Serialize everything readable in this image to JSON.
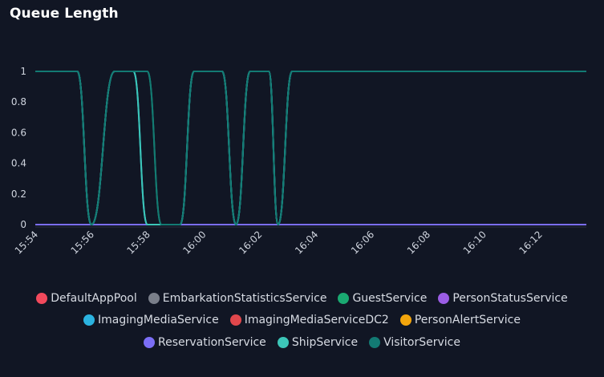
{
  "panel": {
    "title": "Queue Length"
  },
  "chart_data": {
    "type": "line",
    "title": "Queue Length",
    "xlabel": "",
    "ylabel": "",
    "ylim": [
      0,
      1.05
    ],
    "yticks": [
      0,
      0.2,
      0.4,
      0.6,
      0.8,
      1
    ],
    "xlim": [
      "15:54",
      "16:13:40"
    ],
    "xticks": [
      "15:54",
      "15:56",
      "15:58",
      "16:00",
      "16:02",
      "16:04",
      "16:06",
      "16:08",
      "16:10",
      "16:12"
    ],
    "grid": false,
    "legend_position": "bottom",
    "series": [
      {
        "name": "DefaultAppPool",
        "color": "#f2495c",
        "x": [
          "15:54",
          "16:13:40"
        ],
        "y": [
          0,
          0
        ]
      },
      {
        "name": "EmbarkationStatisticsService",
        "color": "#7a7f8a",
        "x": [
          "15:54",
          "16:13:40"
        ],
        "y": [
          0,
          0
        ]
      },
      {
        "name": "GuestService",
        "color": "#1aa971",
        "x": [
          "15:54",
          "15:55:30",
          "15:56",
          "15:56:50",
          "15:58",
          "15:58:30",
          "15:59:10",
          "15:59:40",
          "16:00:40",
          "16:01:10",
          "16:01:40",
          "16:02:20",
          "16:02:40",
          "16:03:10",
          "16:13:40"
        ],
        "y": [
          1,
          1,
          0,
          1,
          1,
          0,
          0,
          1,
          1,
          0,
          1,
          1,
          0,
          1,
          1
        ]
      },
      {
        "name": "PersonStatusService",
        "color": "#9b5de5",
        "x": [
          "15:54",
          "16:13:40"
        ],
        "y": [
          0,
          0
        ]
      },
      {
        "name": "ImagingMediaService",
        "color": "#2bb3e0",
        "x": [
          "15:54",
          "15:55:30",
          "15:56",
          "15:56:50",
          "15:57:30",
          "15:58",
          "15:59:10",
          "15:59:40",
          "16:00:40",
          "16:01:10",
          "16:01:40",
          "16:02:20",
          "16:02:40",
          "16:03:10",
          "16:13:40"
        ],
        "y": [
          1,
          1,
          0,
          1,
          1,
          0,
          0,
          1,
          1,
          0,
          1,
          1,
          0,
          1,
          1
        ]
      },
      {
        "name": "ImagingMediaServiceDC2",
        "color": "#e0474c",
        "x": [
          "15:54",
          "16:13:40"
        ],
        "y": [
          0,
          0
        ]
      },
      {
        "name": "PersonAlertService",
        "color": "#f2a50c",
        "x": [
          "15:54",
          "16:13:40"
        ],
        "y": [
          0,
          0
        ]
      },
      {
        "name": "ReservationService",
        "color": "#7b6ef6",
        "x": [
          "15:54",
          "16:13:40"
        ],
        "y": [
          0,
          0
        ]
      },
      {
        "name": "ShipService",
        "color": "#3cc6b8",
        "x": [
          "15:54",
          "15:55:30",
          "15:56",
          "15:56:50",
          "15:57:30",
          "15:58",
          "15:59:10",
          "15:59:40",
          "16:00:40",
          "16:01:10",
          "16:01:40",
          "16:02:20",
          "16:02:40",
          "16:03:10",
          "16:13:40"
        ],
        "y": [
          1,
          1,
          0,
          1,
          1,
          0,
          0,
          1,
          1,
          0,
          1,
          1,
          0,
          1,
          1
        ]
      },
      {
        "name": "VisitorService",
        "color": "#137a73",
        "x": [
          "15:54",
          "15:55:30",
          "15:56",
          "15:56:50",
          "15:58",
          "15:58:30",
          "15:59:10",
          "15:59:40",
          "16:00:40",
          "16:01:10",
          "16:01:40",
          "16:02",
          "16:02:20",
          "16:02:40",
          "16:03:10",
          "16:13:40"
        ],
        "y": [
          1,
          1,
          0,
          1,
          1,
          0,
          0,
          1,
          1,
          0,
          1,
          1,
          1,
          0,
          1,
          1
        ]
      }
    ]
  }
}
